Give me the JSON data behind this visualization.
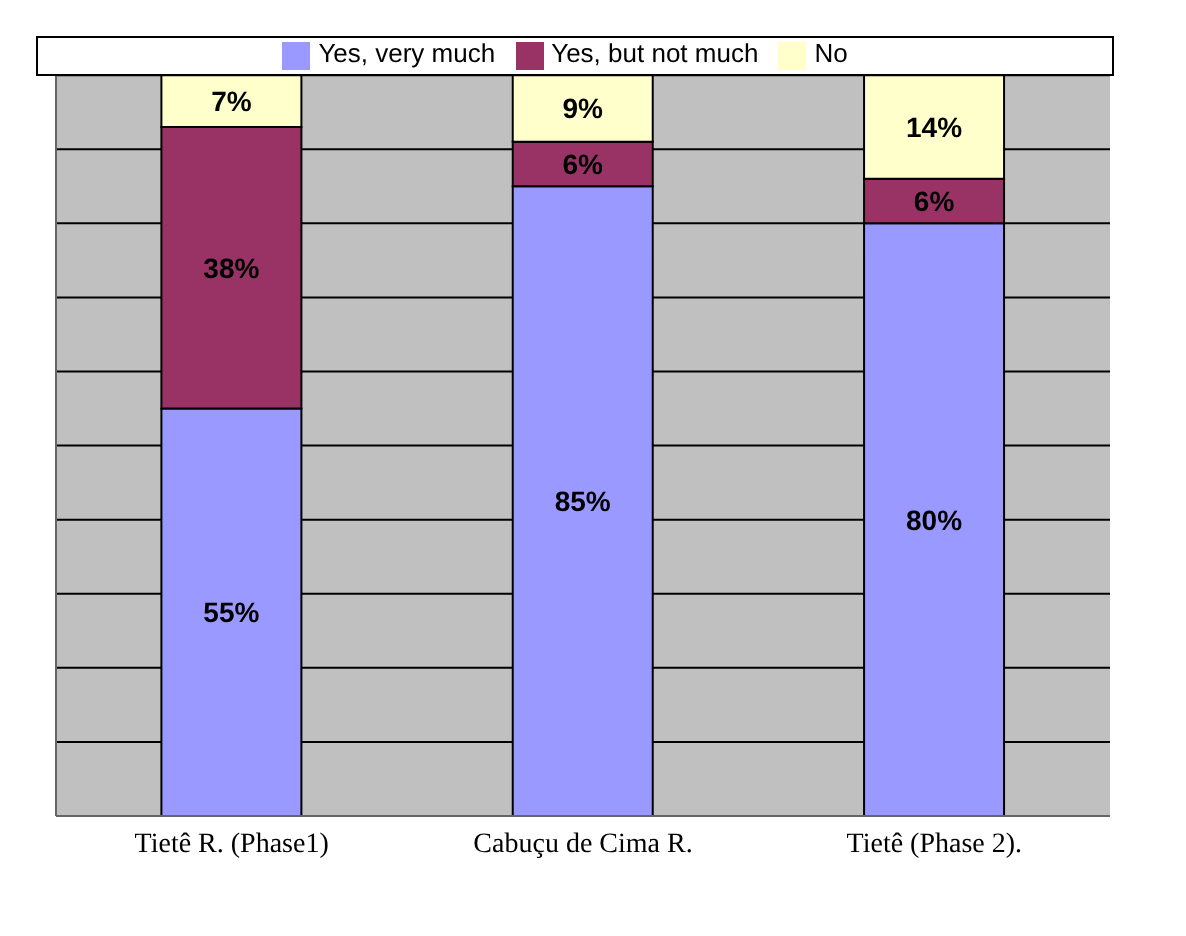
{
  "chart_data": {
    "type": "bar",
    "stacked": true,
    "categories": [
      "Tietê R. (Phase1)",
      "Cabuçu de Cima R.",
      "Tietê (Phase 2)."
    ],
    "series": [
      {
        "name": "Yes, very much",
        "color": "#9999ff",
        "values": [
          55,
          85,
          80
        ],
        "value_labels": [
          "55%",
          "85%",
          "80%"
        ]
      },
      {
        "name": "Yes, but not much",
        "color": "#993366",
        "values": [
          38,
          6,
          6
        ],
        "value_labels": [
          "38%",
          "6%",
          "6%"
        ]
      },
      {
        "name": "No",
        "color": "#ffffcc",
        "values": [
          7,
          9,
          14
        ],
        "value_labels": [
          "7%",
          "9%",
          "14%"
        ]
      }
    ],
    "ylim": [
      0,
      100
    ],
    "tick_labels": "x",
    "grid": "y",
    "legend": "top"
  }
}
